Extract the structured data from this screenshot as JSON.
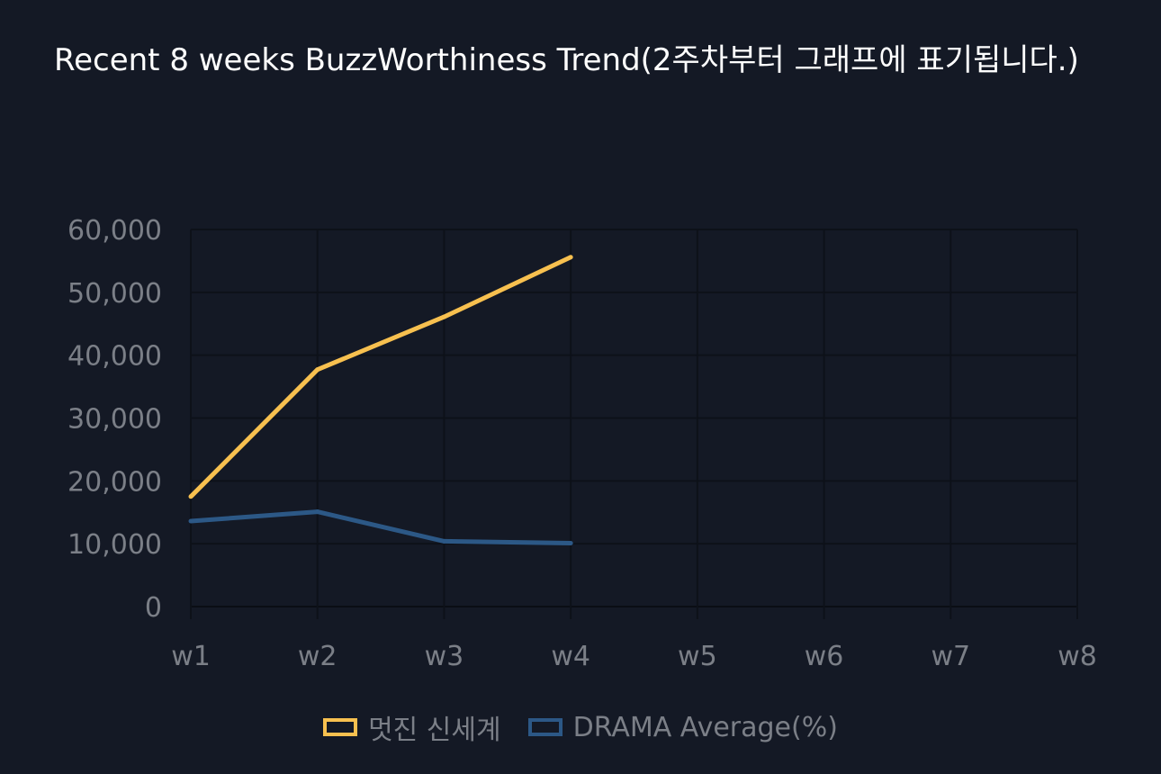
{
  "title": "Recent 8 weeks BuzzWorthiness Trend(2주차부터 그래프에 표기됩니다.)",
  "chart_data": {
    "type": "line",
    "title": "Recent 8 weeks BuzzWorthiness Trend(2주차부터 그래프에 표기됩니다.)",
    "xlabel": "",
    "ylabel": "",
    "categories": [
      "w1",
      "w2",
      "w3",
      "w4",
      "w5",
      "w6",
      "w7",
      "w8"
    ],
    "ylim": [
      0,
      60000
    ],
    "yticks": [
      0,
      10000,
      20000,
      30000,
      40000,
      50000,
      60000
    ],
    "ytick_labels": [
      "0",
      "10,000",
      "20,000",
      "30,000",
      "40,000",
      "50,000",
      "60,000"
    ],
    "grid": true,
    "legend_position": "bottom",
    "series": [
      {
        "name": "멋진 신세계",
        "color": "#f7c04f",
        "values": [
          17500,
          37700,
          46100,
          55600,
          null,
          null,
          null,
          null
        ]
      },
      {
        "name": "DRAMA Average(%)",
        "color": "#2c5886",
        "values": [
          13600,
          15100,
          10400,
          10100,
          null,
          null,
          null,
          null
        ]
      }
    ]
  }
}
